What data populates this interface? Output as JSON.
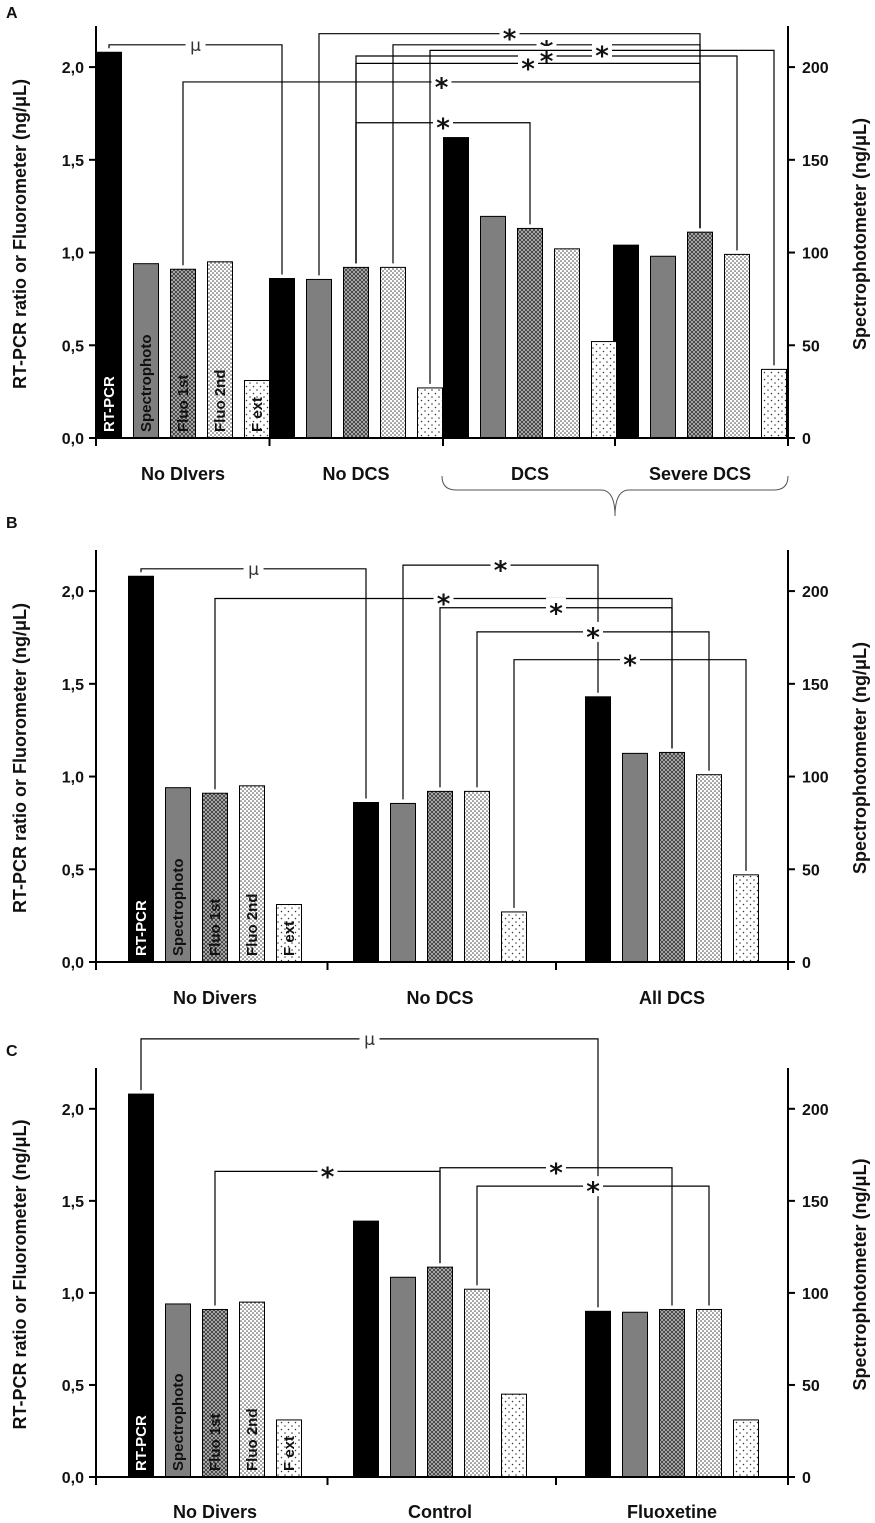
{
  "chart_data": [
    {
      "panel": "A",
      "type": "bar",
      "categories": [
        "No DIvers",
        "No DCS",
        "DCS",
        "Severe DCS"
      ],
      "brace_groups": [
        [
          2,
          3
        ]
      ],
      "ylabel": "RT-PCR ratio or Fluorometer (ng/μL)",
      "ylabel_right": "Spectrophotometer (ng/μL)",
      "ylim": [
        0,
        2.2
      ],
      "ylim_right": [
        0,
        220
      ],
      "yticks": [
        "0,0",
        "0,5",
        "1,0",
        "1,5",
        "2,0"
      ],
      "yticks_right": [
        "0",
        "50",
        "100",
        "150",
        "200"
      ],
      "series": [
        {
          "name": "RT-PCR",
          "axis": "left",
          "pattern": "black",
          "values": [
            2.08,
            0.86,
            1.62,
            1.04
          ]
        },
        {
          "name": "Spectrophoto",
          "axis": "right",
          "pattern": "gray",
          "values": [
            94,
            85.5,
            119.5,
            98
          ]
        },
        {
          "name": "Fluo 1st",
          "axis": "left",
          "pattern": "cross",
          "values": [
            0.91,
            0.92,
            1.13,
            1.11
          ]
        },
        {
          "name": "Fluo 2nd",
          "axis": "left",
          "pattern": "dots",
          "values": [
            0.95,
            0.92,
            1.02,
            0.99
          ]
        },
        {
          "name": "F ext",
          "axis": "left",
          "pattern": "sparse",
          "values": [
            0.31,
            0.27,
            0.52,
            0.37
          ]
        }
      ],
      "annotations": [
        {
          "symbol": "μ",
          "from": [
            0,
            0
          ],
          "to": [
            1,
            0
          ],
          "level": 2.12
        },
        {
          "symbol": "*",
          "from": [
            1,
            1
          ],
          "to": [
            3,
            2
          ],
          "level": 2.18
        },
        {
          "symbol": "*",
          "from": [
            1,
            3
          ],
          "to": [
            3,
            2
          ],
          "level": 2.12
        },
        {
          "symbol": "*",
          "from": [
            1,
            2
          ],
          "to": [
            3,
            3
          ],
          "level": 2.06
        },
        {
          "symbol": "*",
          "from": [
            1,
            2
          ],
          "to": [
            3,
            2
          ],
          "level": 2.02
        },
        {
          "symbol": "*",
          "from": [
            0,
            2
          ],
          "to": [
            3,
            2
          ],
          "level": 1.92
        },
        {
          "symbol": "*",
          "from": [
            1,
            2
          ],
          "to": [
            2,
            2
          ],
          "level": 1.7
        },
        {
          "symbol": "*",
          "from": [
            1,
            4
          ],
          "to": [
            3,
            4
          ],
          "level": 2.09
        }
      ]
    },
    {
      "panel": "B",
      "type": "bar",
      "categories": [
        "No Divers",
        "No DCS",
        "All DCS"
      ],
      "brace_groups": [],
      "ylabel": "RT-PCR ratio or Fluorometer (ng/μL)",
      "ylabel_right": "Spectrophotometer (ng/μL)",
      "ylim": [
        0,
        2.2
      ],
      "ylim_right": [
        0,
        220
      ],
      "yticks": [
        "0,0",
        "0,5",
        "1,0",
        "1,5",
        "2,0"
      ],
      "yticks_right": [
        "0",
        "50",
        "100",
        "150",
        "200"
      ],
      "series": [
        {
          "name": "RT-PCR",
          "axis": "left",
          "pattern": "black",
          "values": [
            2.08,
            0.86,
            1.43
          ]
        },
        {
          "name": "Spectrophoto",
          "axis": "right",
          "pattern": "gray",
          "values": [
            94,
            85.5,
            112.5
          ]
        },
        {
          "name": "Fluo 1st",
          "axis": "left",
          "pattern": "cross",
          "values": [
            0.91,
            0.92,
            1.13
          ]
        },
        {
          "name": "Fluo 2nd",
          "axis": "left",
          "pattern": "dots",
          "values": [
            0.95,
            0.92,
            1.01
          ]
        },
        {
          "name": "F ext",
          "axis": "left",
          "pattern": "sparse",
          "values": [
            0.31,
            0.27,
            0.47
          ]
        }
      ],
      "annotations": [
        {
          "symbol": "μ",
          "from": [
            0,
            0
          ],
          "to": [
            1,
            0
          ],
          "level": 2.12
        },
        {
          "symbol": "*",
          "from": [
            1,
            1
          ],
          "to": [
            2,
            0
          ],
          "level": 2.14
        },
        {
          "symbol": "*",
          "from": [
            0,
            2
          ],
          "to": [
            2,
            2
          ],
          "level": 1.96
        },
        {
          "symbol": "*",
          "from": [
            1,
            2
          ],
          "to": [
            2,
            2
          ],
          "level": 1.91
        },
        {
          "symbol": "*",
          "from": [
            1,
            3
          ],
          "to": [
            2,
            3
          ],
          "level": 1.78
        },
        {
          "symbol": "*",
          "from": [
            1,
            4
          ],
          "to": [
            2,
            4
          ],
          "level": 1.63
        }
      ]
    },
    {
      "panel": "C",
      "type": "bar",
      "categories": [
        "No Divers",
        "Control",
        "Fluoxetine"
      ],
      "brace_groups": [],
      "ylabel": "RT-PCR ratio or Fluorometer (ng/μL)",
      "ylabel_right": "Spectrophotometer (ng/μL)",
      "ylim": [
        0,
        2.2
      ],
      "ylim_right": [
        0,
        220
      ],
      "yticks": [
        "0,0",
        "0,5",
        "1,0",
        "1,5",
        "2,0"
      ],
      "yticks_right": [
        "0",
        "50",
        "100",
        "150",
        "200"
      ],
      "series": [
        {
          "name": "RT-PCR",
          "axis": "left",
          "pattern": "black",
          "values": [
            2.08,
            1.39,
            0.9
          ]
        },
        {
          "name": "Spectrophoto",
          "axis": "right",
          "pattern": "gray",
          "values": [
            94,
            108.5,
            89.5
          ]
        },
        {
          "name": "Fluo 1st",
          "axis": "left",
          "pattern": "cross",
          "values": [
            0.91,
            1.14,
            0.91
          ]
        },
        {
          "name": "Fluo 2nd",
          "axis": "left",
          "pattern": "dots",
          "values": [
            0.95,
            1.02,
            0.91
          ]
        },
        {
          "name": "F ext",
          "axis": "left",
          "pattern": "sparse",
          "values": [
            0.31,
            0.45,
            0.31
          ]
        }
      ],
      "annotations": [
        {
          "symbol": "μ",
          "from": [
            0,
            0
          ],
          "to": [
            2,
            0
          ],
          "level": 2.38
        },
        {
          "symbol": "*",
          "from": [
            0,
            2
          ],
          "to": [
            1,
            2
          ],
          "level": 1.66
        },
        {
          "symbol": "*",
          "from": [
            1,
            2
          ],
          "to": [
            2,
            2
          ],
          "level": 1.68
        },
        {
          "symbol": "*",
          "from": [
            1,
            3
          ],
          "to": [
            2,
            3
          ],
          "level": 1.58
        }
      ]
    }
  ]
}
